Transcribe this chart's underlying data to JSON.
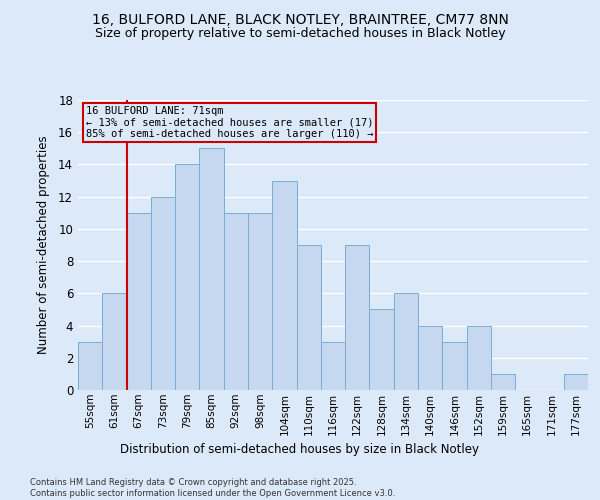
{
  "title1": "16, BULFORD LANE, BLACK NOTLEY, BRAINTREE, CM77 8NN",
  "title2": "Size of property relative to semi-detached houses in Black Notley",
  "xlabel": "Distribution of semi-detached houses by size in Black Notley",
  "ylabel": "Number of semi-detached properties",
  "categories": [
    "55sqm",
    "61sqm",
    "67sqm",
    "73sqm",
    "79sqm",
    "85sqm",
    "92sqm",
    "98sqm",
    "104sqm",
    "110sqm",
    "116sqm",
    "122sqm",
    "128sqm",
    "134sqm",
    "140sqm",
    "146sqm",
    "152sqm",
    "159sqm",
    "165sqm",
    "171sqm",
    "177sqm"
  ],
  "values": [
    3,
    6,
    11,
    12,
    14,
    15,
    11,
    11,
    13,
    9,
    3,
    9,
    5,
    6,
    4,
    3,
    4,
    1,
    0,
    0,
    1
  ],
  "bar_color": "#c5d8f0",
  "bar_edge_color": "#7aadd4",
  "annotation_title": "16 BULFORD LANE: 71sqm",
  "annotation_line1": "← 13% of semi-detached houses are smaller (17)",
  "annotation_line2": "85% of semi-detached houses are larger (110) →",
  "vline_color": "#cc0000",
  "annotation_box_color": "#cc0000",
  "ylim": [
    0,
    18
  ],
  "yticks": [
    0,
    2,
    4,
    6,
    8,
    10,
    12,
    14,
    16,
    18
  ],
  "footer": "Contains HM Land Registry data © Crown copyright and database right 2025.\nContains public sector information licensed under the Open Government Licence v3.0.",
  "bg_color": "#dce9f8",
  "grid_color": "#ffffff",
  "title_fontsize": 10,
  "subtitle_fontsize": 9
}
